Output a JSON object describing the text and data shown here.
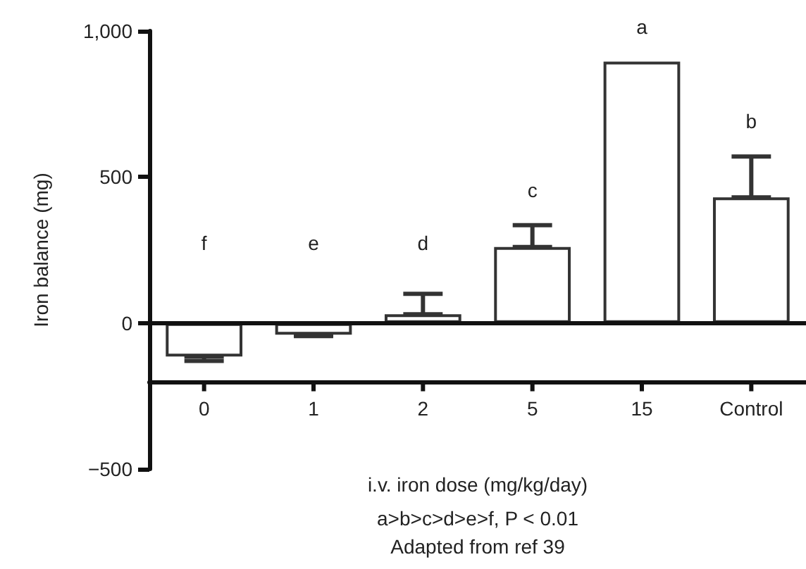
{
  "chart_data": {
    "type": "bar",
    "categories": [
      "0",
      "1",
      "2",
      "5",
      "15",
      "Control"
    ],
    "values": [
      -115,
      -40,
      30,
      260,
      895,
      430
    ],
    "errors": [
      [
        -130,
        -115
      ],
      [
        -45,
        -40
      ],
      [
        30,
        100
      ],
      [
        260,
        335
      ],
      null,
      [
        430,
        570
      ]
    ],
    "color": "#333333",
    "xlabel": "i.v. iron dose (mg/kg/day)",
    "ylabel": "Iron balance (mg)",
    "ylim": [
      -500,
      1000
    ],
    "yticks": [
      {
        "value": -500,
        "label": "−500"
      },
      0,
      500,
      {
        "value": 1000,
        "label": "1,000"
      }
    ],
    "ref_lines": [
      {
        "axis": "y",
        "value": 0,
        "color": "#111111"
      },
      {
        "axis": "y",
        "value": -200,
        "color": "#111111"
      }
    ],
    "annotations": [
      "f",
      "e",
      "d",
      "c",
      "a",
      "b",
      "a>b>c>d>e>f, P < 0.01",
      "Adapted from ref 39"
    ],
    "grid": false
  }
}
